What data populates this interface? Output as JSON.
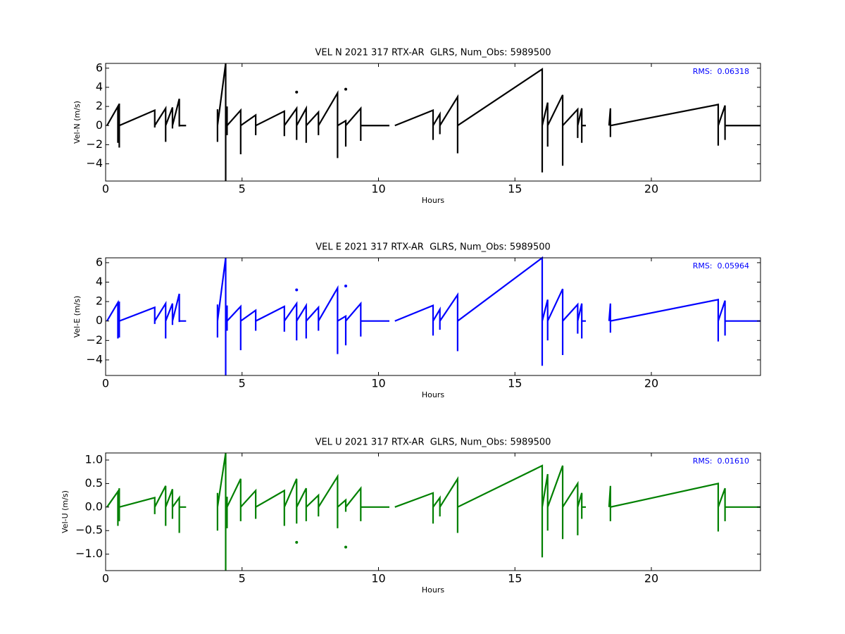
{
  "chart_data": [
    {
      "type": "line",
      "title": "VEL N 2021 317 RTX-AR  GLRS, Num_Obs: 5989500",
      "xlabel": "Hours",
      "ylabel": "Vel-N (m/s)",
      "annotation": "RMS:  0.06318",
      "color": "#000000",
      "xlim": [
        0,
        24
      ],
      "xticks": [
        0,
        5,
        10,
        15,
        20
      ],
      "ylim": [
        -5.8,
        6.5
      ],
      "yticks": [
        {
          "value": -4,
          "label": "−4"
        },
        {
          "value": -2,
          "label": "−2"
        },
        0,
        2,
        4,
        6
      ],
      "x": [
        0.05,
        0.45,
        0.45,
        0.45,
        0.5,
        0.5,
        0.5,
        1.8,
        1.8,
        1.8,
        2.2,
        2.2,
        2.2,
        2.45,
        2.45,
        2.45,
        2.7,
        2.7,
        2.7,
        2.95,
        3.5,
        4.1,
        4.1,
        4.1,
        4.4,
        4.4,
        4.4,
        4.45,
        4.45,
        4.45,
        4.95,
        4.95,
        4.95,
        5.5,
        5.5,
        5.5,
        6.55,
        6.55,
        6.55,
        7.0,
        7.0,
        7.0,
        7.35,
        7.35,
        7.35,
        7.8,
        7.8,
        7.8,
        8.5,
        8.5,
        8.5,
        8.8,
        8.8,
        8.8,
        9.35,
        9.35,
        9.35,
        10.4,
        10.5,
        10.6,
        12.0,
        12.0,
        12.0,
        12.25,
        12.25,
        12.25,
        12.9,
        12.9,
        12.9,
        16.0,
        16.0,
        16.0,
        16.2,
        16.2,
        16.2,
        16.75,
        16.75,
        16.75,
        17.3,
        17.3,
        17.3,
        17.45,
        17.45,
        17.45,
        17.6,
        18.0,
        18.45,
        18.5,
        18.5,
        18.5,
        22.45,
        22.45,
        22.45,
        22.7,
        22.7,
        22.7,
        24.0
      ],
      "values": [
        0,
        2.0,
        -1.8,
        0,
        2.3,
        -2.3,
        0,
        1.6,
        -0.2,
        0,
        1.8,
        -1.7,
        0,
        1.9,
        -0.3,
        0,
        2.8,
        -0.1,
        0,
        0,
        null,
        1.7,
        -1.7,
        0,
        6.5,
        -5.8,
        0,
        2.0,
        -1.0,
        0,
        1.6,
        -3.0,
        0,
        1.1,
        -1.0,
        0,
        1.5,
        -1.1,
        0,
        1.8,
        -1.5,
        0,
        1.8,
        -1.8,
        0,
        1.4,
        -1.0,
        0,
        3.4,
        -3.4,
        0,
        0.5,
        -2.2,
        0,
        1.8,
        -1.6,
        0,
        0,
        null,
        0,
        1.6,
        -1.5,
        0,
        1.2,
        -0.9,
        0,
        3.0,
        -2.9,
        0,
        5.9,
        -4.9,
        0,
        2.4,
        -2.2,
        0,
        3.2,
        -4.2,
        0,
        1.7,
        -1.3,
        0,
        1.8,
        -1.8,
        0,
        0,
        null,
        0,
        1.8,
        -1.2,
        0,
        2.2,
        -2.1,
        0,
        2.1,
        -1.5,
        0,
        0
      ],
      "outliers": {
        "x": [
          7.0,
          8.8
        ],
        "values": [
          3.5,
          3.8
        ]
      }
    },
    {
      "type": "line",
      "title": "VEL E 2021 317 RTX-AR  GLRS, Num_Obs: 5989500",
      "xlabel": "Hours",
      "ylabel": "Vel-E (m/s)",
      "annotation": "RMS:  0.05964",
      "color": "#0000ff",
      "xlim": [
        0,
        24
      ],
      "xticks": [
        0,
        5,
        10,
        15,
        20
      ],
      "ylim": [
        -5.6,
        6.5
      ],
      "yticks": [
        {
          "value": -4,
          "label": "−4"
        },
        {
          "value": -2,
          "label": "−2"
        },
        0,
        2,
        4,
        6
      ],
      "x": [
        0.05,
        0.45,
        0.45,
        0.45,
        0.5,
        0.5,
        0.5,
        1.8,
        1.8,
        1.8,
        2.2,
        2.2,
        2.2,
        2.45,
        2.45,
        2.45,
        2.7,
        2.7,
        2.7,
        2.95,
        3.5,
        4.1,
        4.1,
        4.1,
        4.4,
        4.4,
        4.4,
        4.45,
        4.45,
        4.45,
        4.95,
        4.95,
        4.95,
        5.5,
        5.5,
        5.5,
        6.55,
        6.55,
        6.55,
        7.0,
        7.0,
        7.0,
        7.35,
        7.35,
        7.35,
        7.8,
        7.8,
        7.8,
        8.5,
        8.5,
        8.5,
        8.8,
        8.8,
        8.8,
        9.35,
        9.35,
        9.35,
        10.4,
        10.5,
        10.6,
        12.0,
        12.0,
        12.0,
        12.25,
        12.25,
        12.25,
        12.9,
        12.9,
        12.9,
        16.0,
        16.0,
        16.0,
        16.2,
        16.2,
        16.2,
        16.75,
        16.75,
        16.75,
        17.3,
        17.3,
        17.3,
        17.45,
        17.45,
        17.45,
        17.6,
        18.0,
        18.45,
        18.5,
        18.5,
        18.5,
        22.45,
        22.45,
        22.45,
        22.7,
        22.7,
        22.7,
        24.0
      ],
      "values": [
        0,
        1.9,
        -1.8,
        0,
        2.0,
        -1.7,
        0,
        1.4,
        -0.3,
        0,
        1.8,
        -1.8,
        0,
        1.8,
        -0.4,
        0,
        2.8,
        -0.1,
        0,
        0,
        null,
        1.7,
        -1.7,
        0,
        6.5,
        -5.6,
        0,
        1.6,
        -1.0,
        0,
        1.5,
        -3.0,
        0,
        1.1,
        -1.0,
        0,
        1.5,
        -1.1,
        0,
        1.8,
        -2.0,
        0,
        1.6,
        -1.8,
        0,
        1.4,
        -1.0,
        0,
        3.4,
        -3.4,
        0,
        0.5,
        -2.5,
        0,
        1.8,
        -1.6,
        0,
        0,
        null,
        0,
        1.6,
        -1.5,
        0,
        1.2,
        -0.9,
        0,
        2.7,
        -3.1,
        0,
        6.5,
        -4.6,
        0,
        2.2,
        -2.0,
        0,
        3.3,
        -3.5,
        0,
        1.7,
        -1.3,
        0,
        1.8,
        -1.8,
        0,
        0,
        null,
        0,
        1.8,
        -1.2,
        0,
        2.2,
        -2.1,
        0,
        2.1,
        -1.5,
        0,
        0
      ],
      "outliers": {
        "x": [
          7.0,
          8.8
        ],
        "values": [
          3.2,
          3.6
        ]
      }
    },
    {
      "type": "line",
      "title": "VEL U 2021 317 RTX-AR  GLRS, Num_Obs: 5989500",
      "xlabel": "Hours",
      "ylabel": "Vel-U (m/s)",
      "annotation": "RMS:  0.01610",
      "color": "#008000",
      "xlim": [
        0,
        24
      ],
      "xticks": [
        0,
        5,
        10,
        15,
        20
      ],
      "ylim": [
        -1.35,
        1.15
      ],
      "yticks": [
        {
          "value": -1,
          "label": "−1.0"
        },
        {
          "value": -0.5,
          "label": "−0.5"
        },
        {
          "value": 0,
          "label": "0.0"
        },
        0.5,
        {
          "value": 1,
          "label": "1.0"
        }
      ],
      "x": [
        0.05,
        0.45,
        0.45,
        0.45,
        0.5,
        0.5,
        0.5,
        1.8,
        1.8,
        1.8,
        2.2,
        2.2,
        2.2,
        2.45,
        2.45,
        2.45,
        2.7,
        2.7,
        2.7,
        2.95,
        3.5,
        4.1,
        4.1,
        4.1,
        4.4,
        4.4,
        4.4,
        4.45,
        4.45,
        4.45,
        4.95,
        4.95,
        4.95,
        5.5,
        5.5,
        5.5,
        6.55,
        6.55,
        6.55,
        7.0,
        7.0,
        7.0,
        7.35,
        7.35,
        7.35,
        7.8,
        7.8,
        7.8,
        8.5,
        8.5,
        8.5,
        8.8,
        8.8,
        8.8,
        9.35,
        9.35,
        9.35,
        10.4,
        10.5,
        10.6,
        12.0,
        12.0,
        12.0,
        12.25,
        12.25,
        12.25,
        12.9,
        12.9,
        12.9,
        16.0,
        16.0,
        16.0,
        16.2,
        16.2,
        16.2,
        16.75,
        16.75,
        16.75,
        17.3,
        17.3,
        17.3,
        17.45,
        17.45,
        17.45,
        17.6,
        18.0,
        18.45,
        18.5,
        18.5,
        18.5,
        22.45,
        22.45,
        22.45,
        22.7,
        22.7,
        22.7,
        24.0
      ],
      "values": [
        0,
        0.33,
        -0.4,
        0,
        0.4,
        -0.3,
        0,
        0.2,
        -0.15,
        0,
        0.45,
        -0.4,
        0,
        0.38,
        -0.25,
        0,
        0.2,
        -0.55,
        0,
        0,
        null,
        0.3,
        -0.5,
        0,
        1.15,
        -1.35,
        0,
        0.22,
        -0.45,
        0,
        0.6,
        -0.3,
        0,
        0.35,
        -0.25,
        0,
        0.35,
        -0.4,
        0,
        0.6,
        -0.35,
        0,
        0.4,
        -0.3,
        0,
        0.25,
        -0.2,
        0,
        0.65,
        -0.45,
        0,
        0.15,
        -0.1,
        0,
        0.4,
        -0.3,
        0,
        0,
        null,
        0,
        0.3,
        -0.35,
        0,
        0.2,
        -0.2,
        0,
        0.6,
        -0.55,
        0,
        0.88,
        -1.07,
        0,
        0.7,
        -0.5,
        0,
        0.88,
        -0.68,
        0,
        0.5,
        -0.6,
        0,
        0.3,
        -0.25,
        0,
        0,
        null,
        0,
        0.45,
        -0.3,
        0,
        0.5,
        -0.52,
        0,
        0.4,
        -0.3,
        0,
        0
      ],
      "outliers": {
        "x": [
          7.0,
          8.8
        ],
        "values": [
          -0.75,
          -0.85
        ]
      }
    }
  ]
}
